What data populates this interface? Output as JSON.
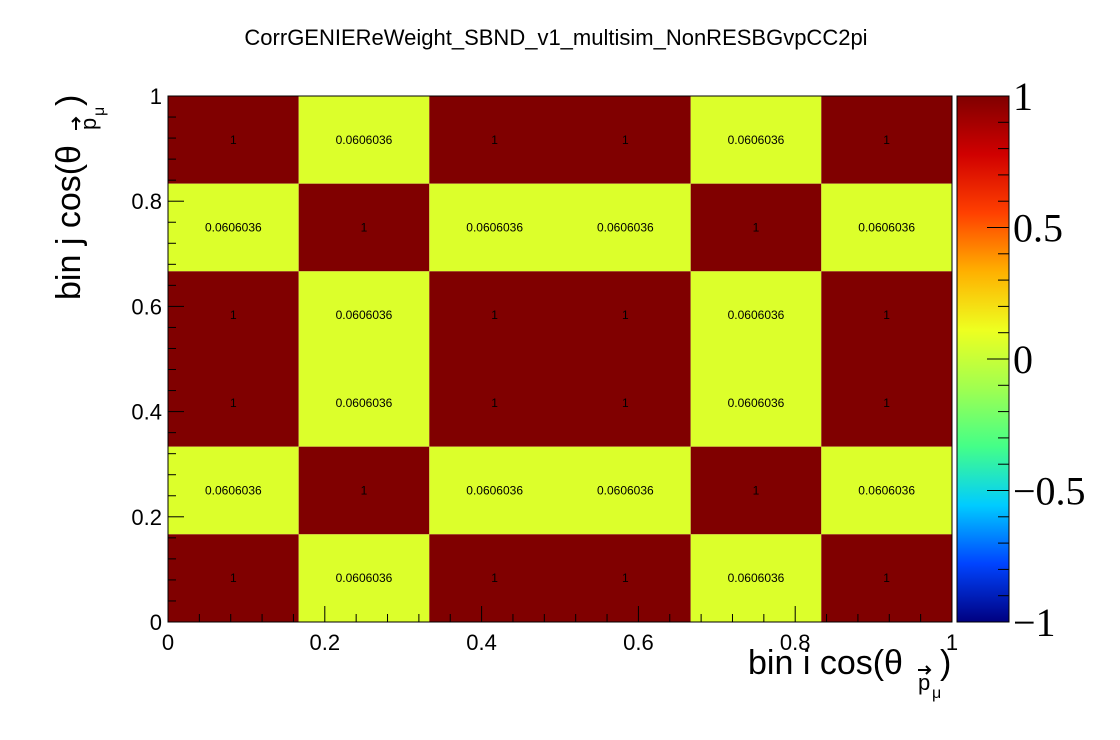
{
  "chart_data": {
    "type": "heatmap",
    "title": "CorrGENIEReWeight_SBND_v1_multisim_NonRESBGvpCC2pi",
    "xlabel": {
      "main": "bin i cos(θ",
      "sub": "p",
      "subsub": "μ",
      "close": ")"
    },
    "ylabel": {
      "main": "bin j cos(θ",
      "sub": "p",
      "subsub": "μ",
      "close": ")"
    },
    "xlim": [
      0,
      1
    ],
    "ylim": [
      0,
      1
    ],
    "x_ticks": [
      "0",
      "0.2",
      "0.4",
      "0.6",
      "0.8",
      "1"
    ],
    "y_ticks": [
      "0",
      "0.2",
      "0.4",
      "0.6",
      "0.8",
      "1"
    ],
    "x_edges": [
      0,
      0.1667,
      0.3333,
      0.5,
      0.6667,
      0.8333,
      1
    ],
    "y_edges": [
      0,
      0.1667,
      0.3333,
      0.5,
      0.6667,
      0.8333,
      1
    ],
    "values": [
      [
        1,
        0.0606036,
        1,
        1,
        0.0606036,
        1
      ],
      [
        0.0606036,
        1,
        0.0606036,
        0.0606036,
        1,
        0.0606036
      ],
      [
        1,
        0.0606036,
        1,
        1,
        0.0606036,
        1
      ],
      [
        1,
        0.0606036,
        1,
        1,
        0.0606036,
        1
      ],
      [
        0.0606036,
        1,
        0.0606036,
        0.0606036,
        1,
        0.0606036
      ],
      [
        1,
        0.0606036,
        1,
        1,
        0.0606036,
        1
      ]
    ],
    "labels": [
      [
        "1",
        "0.0606036",
        "1",
        "1",
        "0.0606036",
        "1"
      ],
      [
        "0.0606036",
        "1",
        "0.0606036",
        "0.0606036",
        "1",
        "0.0606036"
      ],
      [
        "1",
        "0.0606036",
        "1",
        "1",
        "0.0606036",
        "1"
      ],
      [
        "1",
        "0.0606036",
        "1",
        "1",
        "0.0606036",
        "1"
      ],
      [
        "0.0606036",
        "1",
        "0.0606036",
        "0.0606036",
        "1",
        "0.0606036"
      ],
      [
        "1",
        "0.0606036",
        "1",
        "1",
        "0.0606036",
        "1"
      ]
    ],
    "zlim": [
      -1,
      1
    ],
    "colorbar_ticks": [
      "1",
      "0.5",
      "0",
      "−0.5",
      "−1"
    ],
    "colorbar_values": [
      1,
      0.5,
      0,
      -0.5,
      -1
    ],
    "colormap": [
      "#000080",
      "#0044ff",
      "#00ccff",
      "#44ff88",
      "#a0ff50",
      "#eeff20",
      "#ffb000",
      "#ff4000",
      "#d00000",
      "#800000"
    ],
    "grid": false,
    "legend": "colorbar right"
  }
}
